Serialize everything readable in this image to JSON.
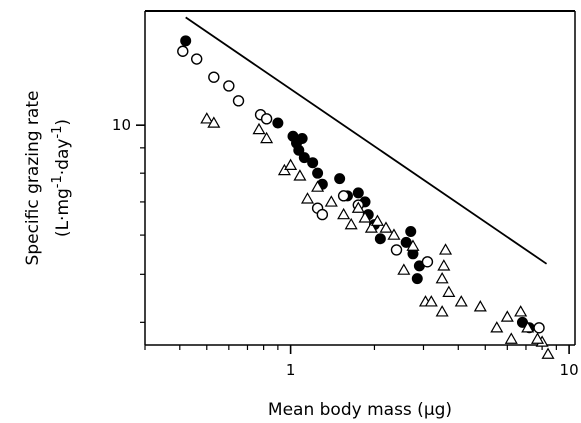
{
  "chart_data": {
    "type": "scatter",
    "title": "",
    "xlabel": "Mean body mass (µg)",
    "ylabel_line1": "Specific grazing rate",
    "ylabel_line2_parts": [
      "(L·mg",
      "-1",
      "·day",
      "-1",
      ")"
    ],
    "x_scale": "log",
    "y_scale": "log",
    "xlim": [
      0.3,
      10.5
    ],
    "ylim": [
      3.6,
      17
    ],
    "x_ticks": [
      {
        "value": 1,
        "label": "1"
      },
      {
        "value": 10,
        "label": "10"
      }
    ],
    "y_ticks": [
      {
        "value": 10,
        "label": "10"
      }
    ],
    "grid": false,
    "legend": "none",
    "series": [
      {
        "marker": "filled-circle",
        "points": [
          [
            0.42,
            14.8
          ],
          [
            0.9,
            10.1
          ],
          [
            1.02,
            9.5
          ],
          [
            1.05,
            9.2
          ],
          [
            1.07,
            8.9
          ],
          [
            1.1,
            9.4
          ],
          [
            1.12,
            8.6
          ],
          [
            1.2,
            8.4
          ],
          [
            1.25,
            8.0
          ],
          [
            1.3,
            7.6
          ],
          [
            1.5,
            7.8
          ],
          [
            1.6,
            7.2
          ],
          [
            1.75,
            7.3
          ],
          [
            1.85,
            7.0
          ],
          [
            1.9,
            6.6
          ],
          [
            2.0,
            6.3
          ],
          [
            2.1,
            5.9
          ],
          [
            2.6,
            5.8
          ],
          [
            2.7,
            6.1
          ],
          [
            2.75,
            5.5
          ],
          [
            2.9,
            5.2
          ],
          [
            2.85,
            4.9
          ],
          [
            6.8,
            4.0
          ],
          [
            7.2,
            3.9
          ]
        ]
      },
      {
        "marker": "open-circle",
        "points": [
          [
            0.41,
            14.1
          ],
          [
            0.46,
            13.6
          ],
          [
            0.53,
            12.5
          ],
          [
            0.6,
            12.0
          ],
          [
            0.65,
            11.2
          ],
          [
            0.78,
            10.5
          ],
          [
            0.82,
            10.3
          ],
          [
            1.25,
            6.8
          ],
          [
            1.3,
            6.6
          ],
          [
            1.55,
            7.2
          ],
          [
            1.75,
            6.9
          ],
          [
            2.4,
            5.6
          ],
          [
            3.1,
            5.3
          ],
          [
            7.8,
            3.9
          ]
        ]
      },
      {
        "marker": "open-triangle",
        "points": [
          [
            0.5,
            10.3
          ],
          [
            0.53,
            10.1
          ],
          [
            0.77,
            9.8
          ],
          [
            0.82,
            9.4
          ],
          [
            0.95,
            8.1
          ],
          [
            1.0,
            8.3
          ],
          [
            1.08,
            7.9
          ],
          [
            1.15,
            7.1
          ],
          [
            1.25,
            7.5
          ],
          [
            1.4,
            7.0
          ],
          [
            1.55,
            6.6
          ],
          [
            1.65,
            6.3
          ],
          [
            1.75,
            6.8
          ],
          [
            1.85,
            6.5
          ],
          [
            1.95,
            6.2
          ],
          [
            2.05,
            6.4
          ],
          [
            2.2,
            6.2
          ],
          [
            2.35,
            6.0
          ],
          [
            2.55,
            5.1
          ],
          [
            2.75,
            5.7
          ],
          [
            3.05,
            4.4
          ],
          [
            3.5,
            4.9
          ],
          [
            3.55,
            5.2
          ],
          [
            3.6,
            5.6
          ],
          [
            3.7,
            4.6
          ],
          [
            3.5,
            4.2
          ],
          [
            3.2,
            4.4
          ],
          [
            4.1,
            4.4
          ],
          [
            4.8,
            4.3
          ],
          [
            5.5,
            3.9
          ],
          [
            6.0,
            4.1
          ],
          [
            6.2,
            3.7
          ],
          [
            6.7,
            4.2
          ],
          [
            7.1,
            3.9
          ],
          [
            8.0,
            3.65
          ],
          [
            8.4,
            3.45
          ],
          [
            7.7,
            3.7
          ]
        ]
      }
    ],
    "reference_line": {
      "x": [
        0.42,
        8.3
      ],
      "y": [
        16.5,
        5.25
      ]
    }
  }
}
